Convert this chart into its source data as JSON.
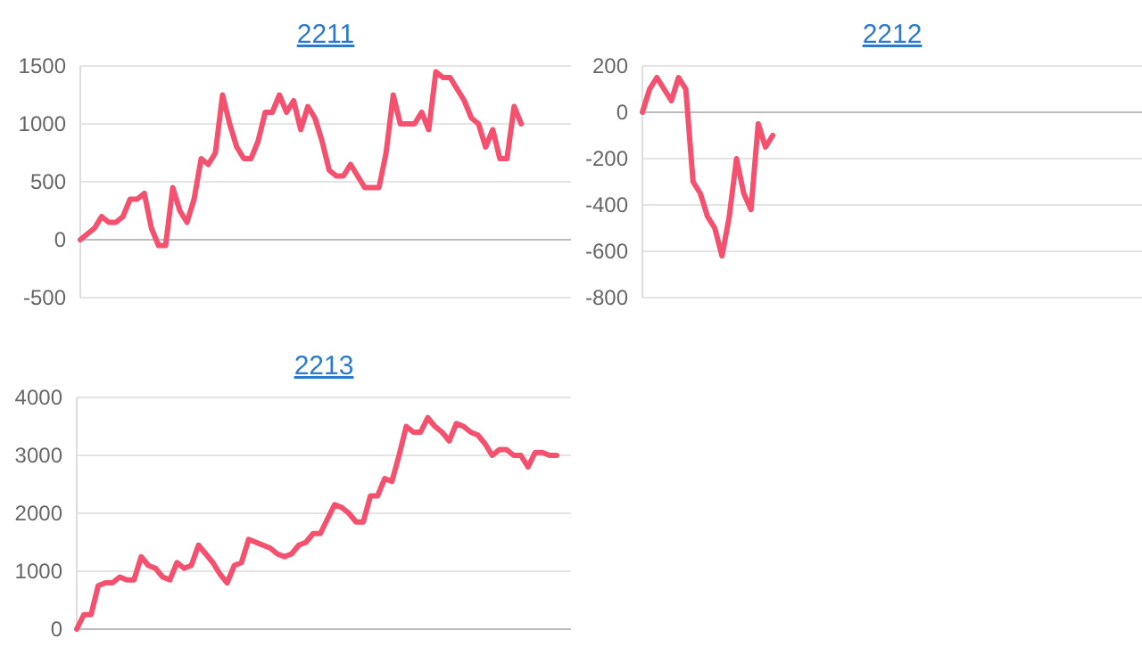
{
  "chart_data": [
    {
      "type": "line",
      "title": "2211",
      "categories": [
        null,
        null,
        null,
        null,
        null,
        null,
        null,
        null,
        null,
        null,
        null,
        null,
        null,
        null,
        null,
        null,
        null,
        null,
        null,
        null,
        null,
        null,
        null,
        null,
        null,
        null,
        null,
        null,
        null,
        null,
        null,
        null,
        null,
        null,
        null,
        null,
        null,
        null,
        null,
        null,
        null,
        null,
        null,
        null,
        null,
        null,
        null,
        null,
        null,
        null,
        null,
        null,
        null,
        null,
        null,
        null,
        null,
        null,
        null,
        null,
        null,
        null,
        null,
        null,
        null,
        null,
        null,
        null,
        null,
        null
      ],
      "series": [
        {
          "color": "#f5506e",
          "values": [
            0,
            50,
            100,
            200,
            150,
            150,
            200,
            350,
            350,
            400,
            100,
            -50,
            -50,
            450,
            250,
            150,
            350,
            700,
            650,
            750,
            1250,
            1000,
            800,
            700,
            700,
            850,
            1100,
            1100,
            1250,
            1100,
            1200,
            950,
            1150,
            1050,
            850,
            600,
            550,
            550,
            650,
            550,
            450,
            450,
            450,
            750,
            1250,
            1000,
            1000,
            1000,
            1100,
            950,
            1450,
            1400,
            1400,
            1300,
            1200,
            1050,
            1000,
            800,
            950,
            700,
            700,
            1150,
            1000,
            null,
            null,
            null,
            null,
            null,
            null,
            null
          ]
        }
      ],
      "ylim": [
        -500,
        1500
      ],
      "yticks": [
        -500,
        0,
        500,
        1000,
        1500
      ],
      "grid": "y",
      "tick_labels": "y",
      "marker": "none",
      "line_style": "solid"
    },
    {
      "type": "line",
      "title": "2212",
      "categories": [
        null,
        null,
        null,
        null,
        null,
        null,
        null,
        null,
        null,
        null,
        null,
        null,
        null,
        null,
        null,
        null,
        null,
        null,
        null,
        null,
        null,
        null,
        null,
        null,
        null,
        null,
        null,
        null,
        null,
        null,
        null,
        null,
        null,
        null,
        null,
        null,
        null,
        null,
        null,
        null,
        null,
        null,
        null,
        null,
        null,
        null,
        null,
        null,
        null,
        null,
        null,
        null,
        null,
        null,
        null,
        null,
        null,
        null,
        null,
        null,
        null,
        null,
        null,
        null,
        null,
        null,
        null,
        null,
        null,
        null
      ],
      "series": [
        {
          "color": "#f5506e",
          "values": [
            0,
            100,
            150,
            100,
            50,
            150,
            100,
            -300,
            -350,
            -450,
            -500,
            -620,
            -450,
            -200,
            -350,
            -420,
            -50,
            -150,
            -100,
            null,
            null,
            null,
            null,
            null,
            null,
            null,
            null,
            null,
            null,
            null,
            null,
            null,
            null,
            null,
            null,
            null,
            null,
            null,
            null,
            null,
            null,
            null,
            null,
            null,
            null,
            null,
            null,
            null,
            null,
            null,
            null,
            null,
            null,
            null,
            null,
            null,
            null,
            null,
            null,
            null,
            null,
            null,
            null,
            null,
            null,
            null,
            null,
            null,
            null,
            null
          ]
        }
      ],
      "ylim": [
        -800,
        200
      ],
      "yticks": [
        -800,
        -600,
        -400,
        -200,
        0,
        200
      ],
      "grid": "y",
      "tick_labels": "y",
      "marker": "none",
      "line_style": "solid"
    },
    {
      "type": "line",
      "title": "2213",
      "categories": [
        null,
        null,
        null,
        null,
        null,
        null,
        null,
        null,
        null,
        null,
        null,
        null,
        null,
        null,
        null,
        null,
        null,
        null,
        null,
        null,
        null,
        null,
        null,
        null,
        null,
        null,
        null,
        null,
        null,
        null,
        null,
        null,
        null,
        null,
        null,
        null,
        null,
        null,
        null,
        null,
        null,
        null,
        null,
        null,
        null,
        null,
        null,
        null,
        null,
        null,
        null,
        null,
        null,
        null,
        null,
        null,
        null,
        null,
        null,
        null,
        null,
        null,
        null,
        null,
        null,
        null,
        null,
        null,
        null,
        null
      ],
      "series": [
        {
          "color": "#f5506e",
          "values": [
            0,
            250,
            250,
            750,
            800,
            800,
            900,
            850,
            850,
            1250,
            1100,
            1050,
            900,
            850,
            1150,
            1050,
            1100,
            1450,
            1300,
            1150,
            950,
            800,
            1100,
            1150,
            1550,
            1500,
            1450,
            1400,
            1300,
            1250,
            1300,
            1450,
            1500,
            1650,
            1650,
            1900,
            2150,
            2100,
            2000,
            1850,
            1850,
            2300,
            2300,
            2600,
            2550,
            3000,
            3500,
            3400,
            3400,
            3650,
            3500,
            3400,
            3250,
            3550,
            3500,
            3400,
            3350,
            3200,
            3000,
            3100,
            3100,
            3000,
            3000,
            2800,
            3050,
            3050,
            3000,
            3000,
            null,
            null
          ]
        }
      ],
      "ylim": [
        0,
        4000
      ],
      "yticks": [
        0,
        1000,
        2000,
        3000,
        4000
      ],
      "grid": "y",
      "tick_labels": "y",
      "marker": "none",
      "line_style": "solid"
    }
  ]
}
